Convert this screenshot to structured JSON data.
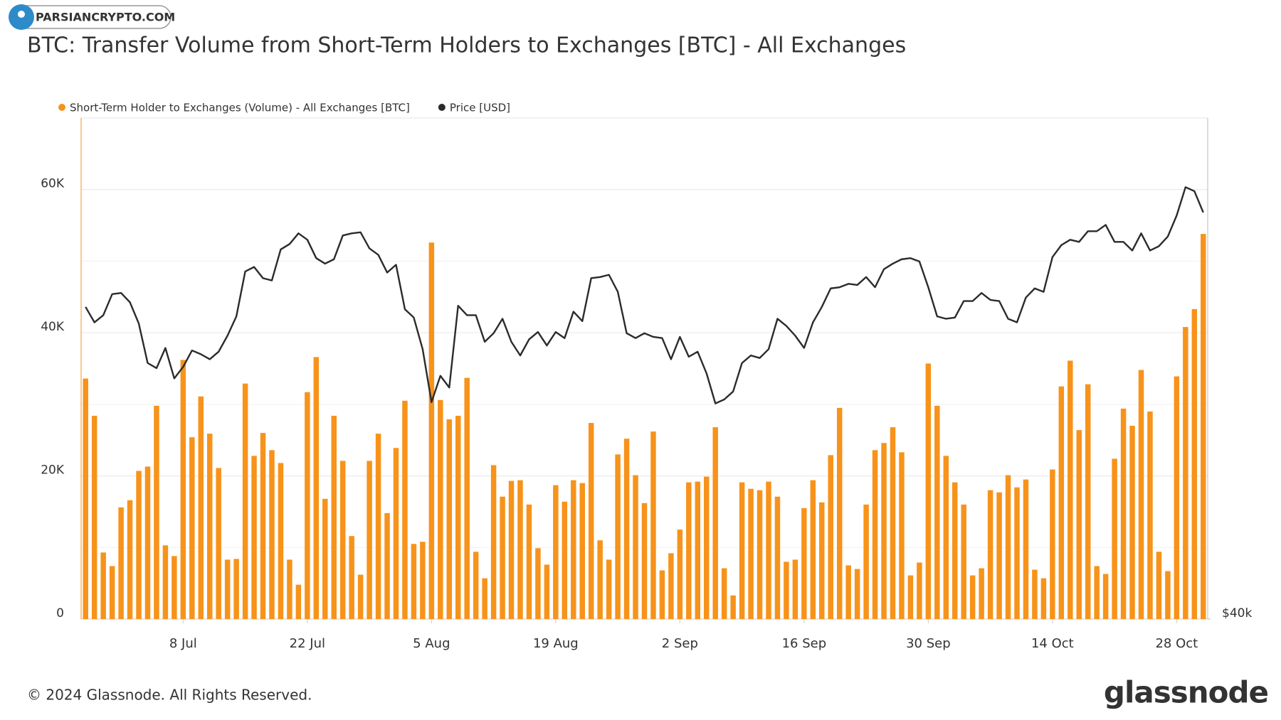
{
  "watermark": "PARSIANCRYPTO.COM",
  "copyright": "© 2024 Glassnode. All Rights Reserved.",
  "brand": "glassnode",
  "chart_data": {
    "type": "combo",
    "title": "BTC: Transfer Volume from Short-Term Holders to Exchanges [BTC] - All Exchanges",
    "categories": [
      null,
      null,
      null,
      null,
      null,
      null,
      null,
      null,
      null,
      null,
      null,
      "8 Jul",
      null,
      null,
      null,
      null,
      null,
      null,
      null,
      null,
      null,
      null,
      null,
      null,
      null,
      "22 Jul",
      null,
      null,
      null,
      null,
      null,
      null,
      null,
      null,
      null,
      null,
      null,
      null,
      null,
      "5 Aug",
      null,
      null,
      null,
      null,
      null,
      null,
      null,
      null,
      null,
      null,
      null,
      null,
      null,
      "19 Aug",
      null,
      null,
      null,
      null,
      null,
      null,
      null,
      null,
      null,
      null,
      null,
      null,
      null,
      "2 Sep",
      null,
      null,
      null,
      null,
      null,
      null,
      null,
      null,
      null,
      null,
      null,
      null,
      null,
      "16 Sep",
      null,
      null,
      null,
      null,
      null,
      null,
      null,
      null,
      null,
      null,
      null,
      null,
      null,
      "30 Sep",
      null,
      null,
      null,
      null,
      null,
      null,
      null,
      null,
      null,
      null,
      null,
      null,
      null,
      "14 Oct",
      null,
      null,
      null,
      null,
      null,
      null,
      null,
      null,
      null,
      null,
      null,
      null,
      null,
      "28 Oct",
      null,
      null,
      null
    ],
    "series": [
      {
        "name": "Short-Term Holder to Exchanges (Volume) - All Exchanges [BTC]",
        "type": "bar",
        "color": "#f7931a",
        "values": [
          33600,
          28400,
          9300,
          7400,
          15600,
          16600,
          20700,
          21300,
          29800,
          10300,
          8800,
          36200,
          25400,
          31100,
          25900,
          21100,
          8300,
          8400,
          32900,
          22800,
          26000,
          23600,
          21800,
          8300,
          4800,
          31700,
          36600,
          16800,
          28400,
          22100,
          11600,
          6200,
          22100,
          25900,
          14800,
          23900,
          30500,
          10500,
          10800,
          52600,
          30600,
          27900,
          28400,
          33700,
          9400,
          5700,
          21500,
          17100,
          19300,
          19400,
          16000,
          9900,
          7600,
          18700,
          16400,
          19400,
          19000,
          27400,
          11000,
          8300,
          23000,
          25200,
          20100,
          16200,
          26200,
          6800,
          9200,
          12500,
          19100,
          19200,
          19900,
          26800,
          7100,
          3300,
          19100,
          18200,
          18000,
          19200,
          17100,
          8000,
          8300,
          15500,
          19400,
          16300,
          22900,
          29500,
          7500,
          7000,
          16000,
          23600,
          24600,
          26800,
          23300,
          6100,
          7900,
          35700,
          29800,
          22800,
          19100,
          16000,
          6100,
          7100,
          18000,
          17700,
          20100,
          18400,
          19500,
          6900,
          5700,
          20900,
          32500,
          36100,
          26400,
          32800,
          7400,
          6300,
          22400,
          29400,
          27000,
          34800,
          29000,
          9400,
          6700,
          33900,
          40800,
          43300,
          53800
        ]
      },
      {
        "name": "Price [USD]",
        "type": "line",
        "color": "#2b2b2b",
        "axis": "y2",
        "values": [
          61600,
          60300,
          60900,
          62700,
          62800,
          62000,
          60200,
          57000,
          56600,
          58200,
          55800,
          56700,
          58000,
          57700,
          57300,
          57900,
          59200,
          60800,
          64700,
          65100,
          64100,
          63900,
          66700,
          67200,
          68200,
          67600,
          65900,
          65400,
          65800,
          68000,
          68200,
          68300,
          66800,
          66200,
          64600,
          65300,
          61400,
          60700,
          58100,
          54000,
          56000,
          55100,
          61700,
          60900,
          60900,
          58700,
          59400,
          60600,
          58700,
          57600,
          58900,
          59500,
          58400,
          59500,
          59000,
          61200,
          60400,
          64100,
          64200,
          64400,
          62900,
          59400,
          59000,
          59400,
          59100,
          59000,
          57300,
          59100,
          57500,
          57900,
          56200,
          53900,
          54200,
          54800,
          57000,
          57600,
          57400,
          58100,
          60600,
          60000,
          59200,
          58200,
          60300,
          61600,
          63200,
          63300,
          63600,
          63500,
          64200,
          63300,
          64900,
          65400,
          65800,
          65900,
          65600,
          63300,
          60800,
          60600,
          60700,
          62100,
          62100,
          62800,
          62200,
          62100,
          60600,
          60300,
          62400,
          63200,
          62900,
          66000,
          67100,
          67600,
          67400,
          68400,
          68400,
          69000,
          67400,
          67400,
          66600,
          68200,
          66600,
          67000,
          67900,
          69900,
          72700,
          72300,
          70200
        ]
      }
    ],
    "ylim": [
      0,
      70000
    ],
    "yticks": [
      {
        "value": 0,
        "label": "0"
      },
      {
        "value": 20000,
        "label": "20K"
      },
      {
        "value": 40000,
        "label": "40K"
      },
      {
        "value": 60000,
        "label": "60K"
      }
    ],
    "minor_yticks": [
      10000,
      30000,
      50000
    ],
    "y2lim": [
      40000,
      80000
    ],
    "y2ticks": [
      {
        "value": 40000,
        "label": "$40k"
      }
    ],
    "y2_scale": "log",
    "grid": true,
    "legend": "top-left"
  }
}
